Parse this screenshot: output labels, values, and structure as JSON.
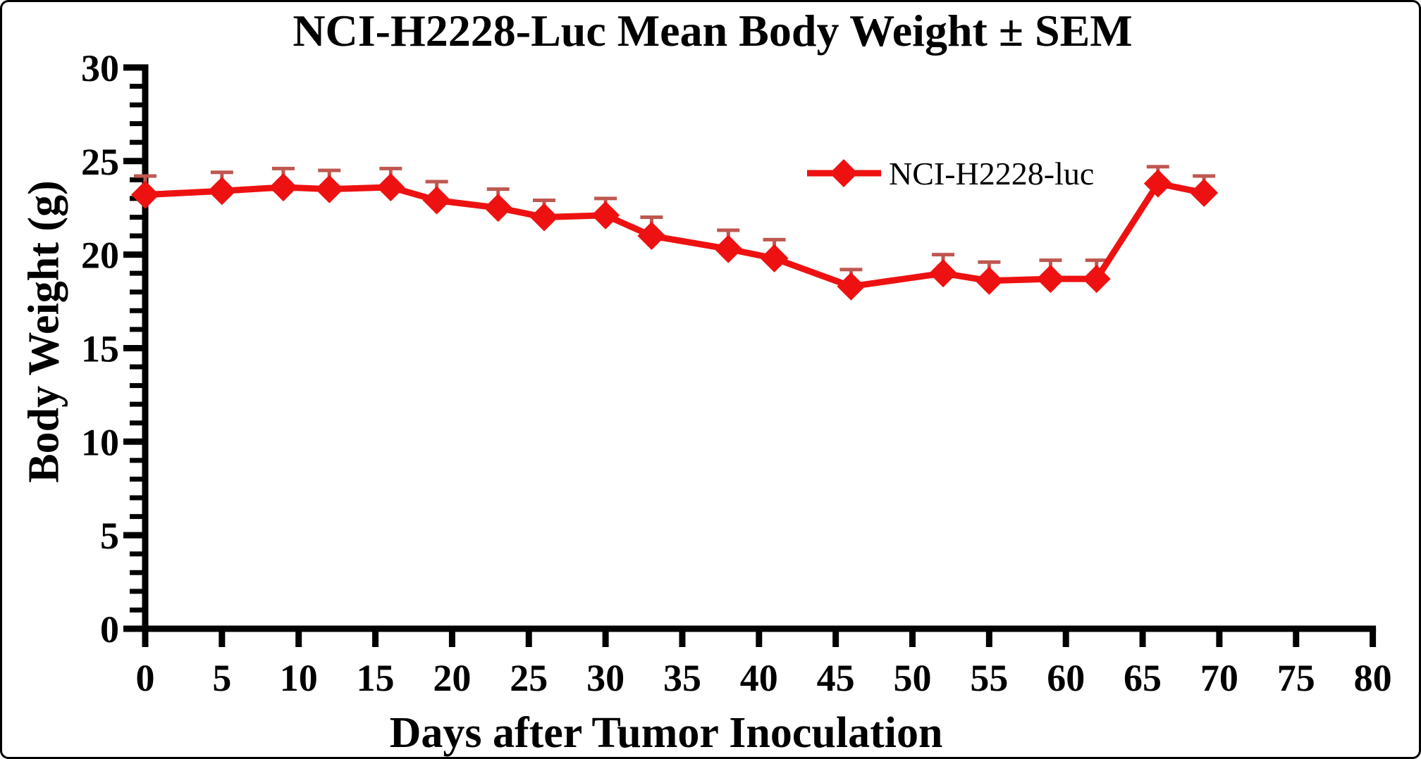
{
  "title": "NCI-H2228-Luc Mean Body Weight ± SEM",
  "colors": {
    "series_line": "#ee1111",
    "series_marker": "#ee1111",
    "error_bar": "#bf5750",
    "axis": "#000000",
    "background": "#ffffff",
    "text": "#000000"
  },
  "legend": {
    "position": "upper right",
    "entries": [
      {
        "label": "NCI-H2228-luc",
        "marker": "diamond-icon"
      }
    ]
  },
  "chart_data": {
    "type": "line",
    "title": "NCI-H2228-Luc Mean Body Weight ± SEM",
    "xlabel": "Days after Tumor Inoculation",
    "ylabel": "Body Weight (g)",
    "xlim": [
      0,
      80
    ],
    "ylim": [
      0,
      30
    ],
    "xticks": [
      0,
      5,
      10,
      15,
      20,
      25,
      30,
      35,
      40,
      45,
      50,
      55,
      60,
      65,
      70,
      75,
      80
    ],
    "yticks_major": [
      0,
      5,
      10,
      15,
      20,
      25,
      30
    ],
    "ytick_minor_step": 1,
    "grid": false,
    "error_bars": "upper SEM only, with caps",
    "x": [
      0,
      5,
      9,
      12,
      16,
      19,
      23,
      26,
      30,
      33,
      38,
      41,
      46,
      52,
      55,
      59,
      62,
      66,
      69
    ],
    "series": [
      {
        "name": "NCI-H2228-luc",
        "values": [
          23.2,
          23.4,
          23.6,
          23.5,
          23.6,
          22.9,
          22.5,
          22.0,
          22.1,
          21.0,
          20.3,
          19.8,
          18.3,
          19.0,
          18.6,
          18.7,
          18.7,
          23.8,
          23.3
        ],
        "sem": [
          1.0,
          1.0,
          1.0,
          1.0,
          1.0,
          1.0,
          1.0,
          0.9,
          0.9,
          1.0,
          1.0,
          1.0,
          0.9,
          1.0,
          1.0,
          1.0,
          1.0,
          0.9,
          0.9
        ]
      }
    ]
  }
}
